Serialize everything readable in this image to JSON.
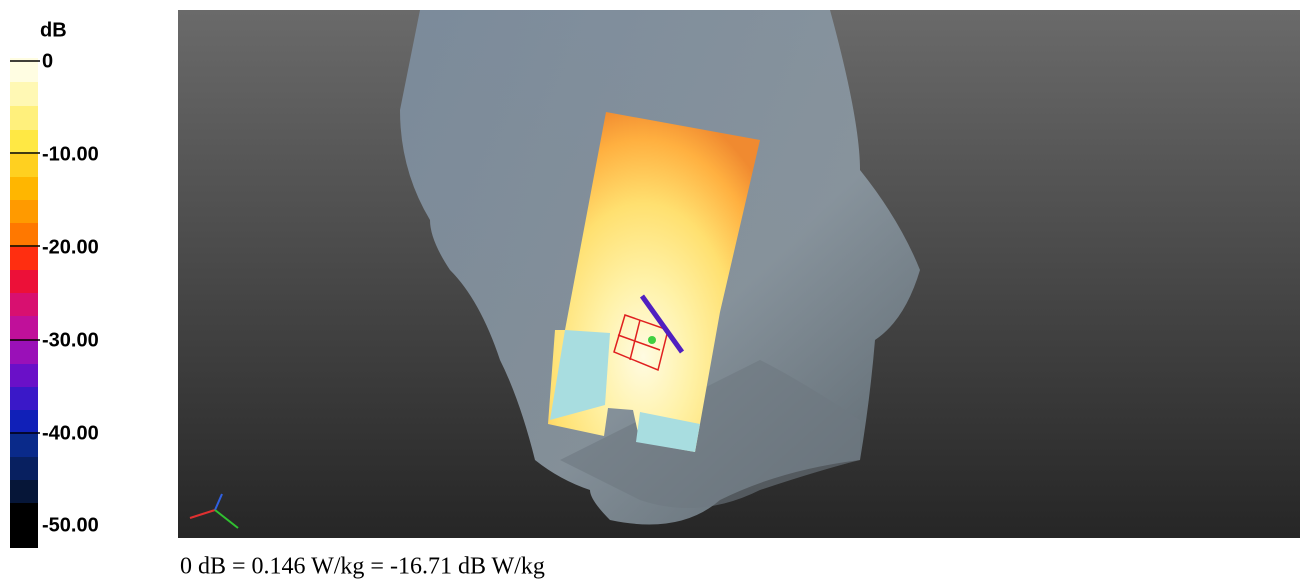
{
  "colorbar": {
    "unit": "dB",
    "ticks": [
      "0",
      "-10.00",
      "-20.00",
      "-30.00",
      "-40.00",
      "-50.00"
    ]
  },
  "caption": "0 dB = 0.146 W/kg = -16.71 dB W/kg"
}
